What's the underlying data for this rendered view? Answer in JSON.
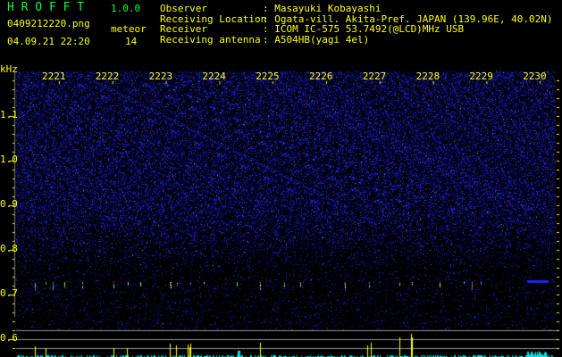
{
  "header": {
    "app_name": "H R O F F T",
    "version": "1.0.0",
    "filename": "0409212220.png",
    "datetime": "04.09.21 22:20",
    "meteor_label": "meteor",
    "meteor_count": "14",
    "info": [
      {
        "label": "Observer",
        "value": ": Masayuki Kobayashi"
      },
      {
        "label": "Receiving Location",
        "value": ": Ogata-vill. Akita-Pref. JAPAN (139.96E, 40.02N)"
      },
      {
        "label": "Receiver",
        "value": ": ICOM IC-575 53.7492(@LCD)MHz USB"
      },
      {
        "label": "Receiving antenna",
        "value": ": A504HB(yagi 4el)"
      }
    ]
  },
  "colors": {
    "text": "#ffff00",
    "title": "#00ff40",
    "noise": "#2020ff",
    "histogram": "#00e0e0",
    "spike": "#ffff00"
  },
  "chart_data": {
    "type": "heatmap",
    "ylabel": "kHz",
    "y_ticks": [
      "1.1",
      "1.0",
      "0.9",
      "0.8",
      "0.7",
      "0.6"
    ],
    "x_ticks": [
      "2221",
      "2222",
      "2223",
      "2224",
      "2225",
      "2226",
      "2227",
      "2228",
      "2229",
      "2230"
    ],
    "ylim": [
      0.56,
      1.19
    ],
    "meteor_band_khz": 0.72
  }
}
